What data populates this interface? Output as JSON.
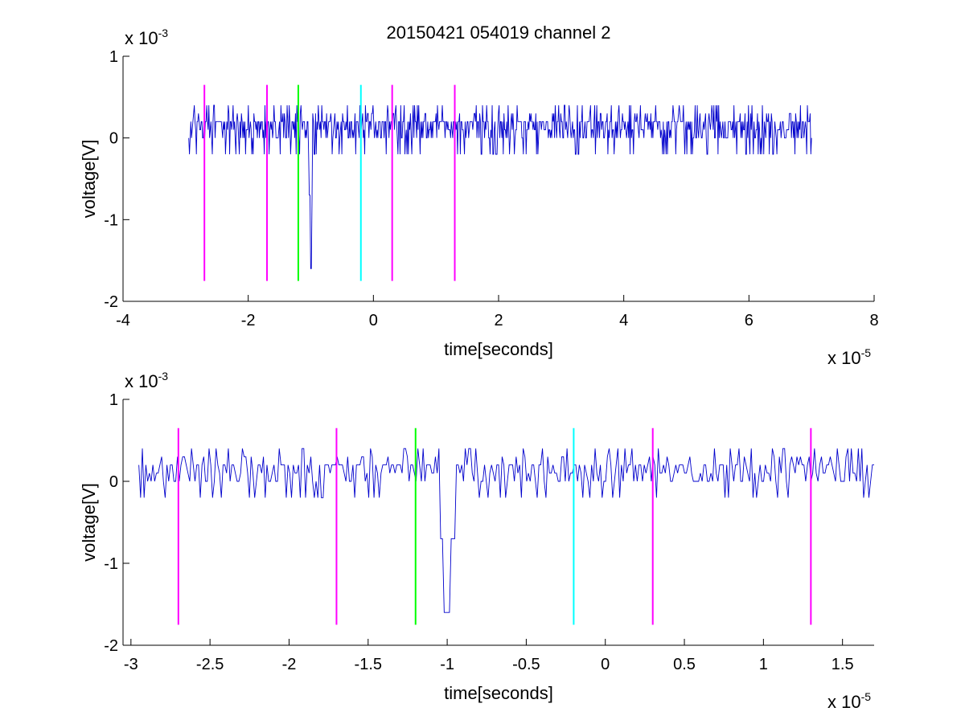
{
  "figure": {
    "title": "20150421 054019 channel 2"
  },
  "chart_data": [
    {
      "type": "line",
      "xlabel": "time[seconds]",
      "ylabel": "voltage[V]",
      "x_exponent": "x 10^-5",
      "y_exponent": "x 10^-3",
      "xlim": [
        -4,
        8
      ],
      "ylim": [
        -2,
        1
      ],
      "xticks": [
        -4,
        -2,
        0,
        2,
        4,
        6,
        8
      ],
      "xtick_labels": [
        "-4",
        "-2",
        "0",
        "2",
        "4",
        "6",
        "8"
      ],
      "yticks": [
        -2,
        -1,
        0,
        1
      ],
      "ytick_labels": [
        "-2",
        "-1",
        "0",
        "1"
      ],
      "grid": false,
      "signal": {
        "color": "#0000cc",
        "x_start": -2.95,
        "x_end": 7.0,
        "baseline": 0.1,
        "note_values": "noisy trace mostly between -0.2 and 0.4 with spike to -1.6 near x=-1.0"
      },
      "markers": [
        {
          "x": -2.7,
          "y_top": 0.65,
          "y_bottom": -1.75,
          "color": "#ff00ff"
        },
        {
          "x": -1.7,
          "y_top": 0.65,
          "y_bottom": -1.75,
          "color": "#ff00ff"
        },
        {
          "x": -1.2,
          "y_top": 0.65,
          "y_bottom": -1.75,
          "color": "#00ff00"
        },
        {
          "x": -0.2,
          "y_top": 0.65,
          "y_bottom": -1.75,
          "color": "#00ffff"
        },
        {
          "x": 0.3,
          "y_top": 0.65,
          "y_bottom": -1.75,
          "color": "#ff00ff"
        },
        {
          "x": 1.3,
          "y_top": 0.65,
          "y_bottom": -1.75,
          "color": "#ff00ff"
        }
      ]
    },
    {
      "type": "line",
      "xlabel": "time[seconds]",
      "ylabel": "voltage[V]",
      "x_exponent": "x 10^-5",
      "y_exponent": "x 10^-3",
      "xlim": [
        -3.05,
        1.7
      ],
      "ylim": [
        -2,
        1
      ],
      "xticks": [
        -3,
        -2.5,
        -2,
        -1.5,
        -1,
        -0.5,
        0,
        0.5,
        1,
        1.5
      ],
      "xtick_labels": [
        "-3",
        "-2.5",
        "-2",
        "-1.5",
        "-1",
        "-0.5",
        "0",
        "0.5",
        "1",
        "1.5"
      ],
      "yticks": [
        -2,
        -1,
        0,
        1
      ],
      "ytick_labels": [
        "-2",
        "-1",
        "0",
        "1"
      ],
      "grid": false,
      "signal": {
        "color": "#0000cc",
        "x_start": -2.95,
        "x_end": 1.7,
        "baseline": 0.1
      },
      "markers": [
        {
          "x": -2.7,
          "y_top": 0.65,
          "y_bottom": -1.75,
          "color": "#ff00ff"
        },
        {
          "x": -1.7,
          "y_top": 0.65,
          "y_bottom": -1.75,
          "color": "#ff00ff"
        },
        {
          "x": -1.2,
          "y_top": 0.65,
          "y_bottom": -1.75,
          "color": "#00ff00"
        },
        {
          "x": -0.2,
          "y_top": 0.65,
          "y_bottom": -1.75,
          "color": "#00ffff"
        },
        {
          "x": 0.3,
          "y_top": 0.65,
          "y_bottom": -1.75,
          "color": "#ff00ff"
        },
        {
          "x": 1.3,
          "y_top": 0.65,
          "y_bottom": -1.75,
          "color": "#ff00ff"
        }
      ]
    }
  ]
}
